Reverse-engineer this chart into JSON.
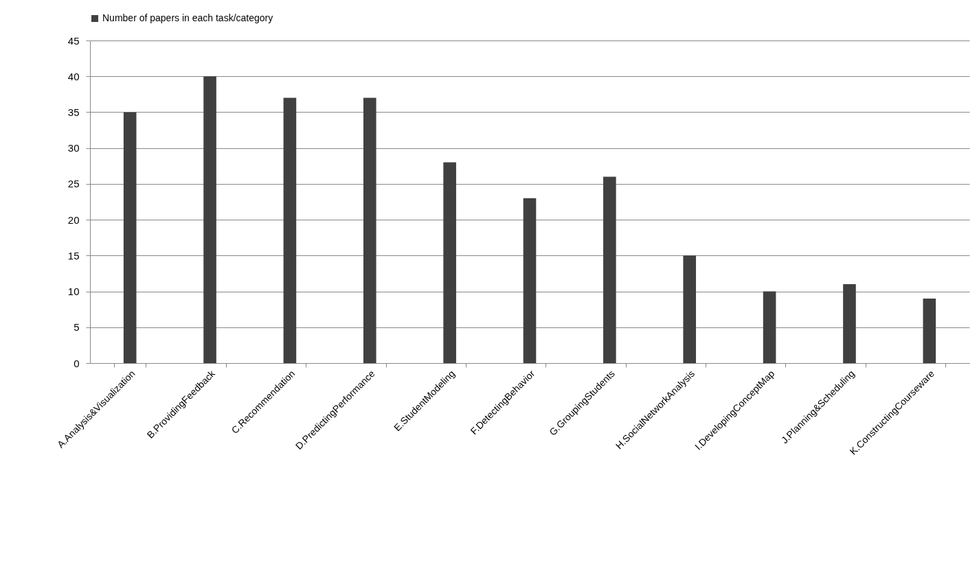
{
  "chart_data": {
    "type": "bar",
    "categories": [
      "A.Analysis&Visualization",
      "B.ProvidingFeedback",
      "C.Recommendation",
      "D.PredictingPerformance",
      "E.StudentModeling",
      "F.DetectingBehavior",
      "G.GroupingStudents",
      "H.SocialNetworkAnalysis",
      "I.DevelopingConceptMap",
      "J.Planning&Scheduling",
      "K.ConstructingCourseware"
    ],
    "series": [
      {
        "name": "Number of papers in each task/category",
        "color": "#404040",
        "values": [
          35,
          40,
          37,
          37,
          28,
          23,
          26,
          15,
          10,
          11,
          9
        ]
      }
    ],
    "ylim": [
      0,
      45
    ],
    "yticks": [
      0,
      5,
      10,
      15,
      20,
      25,
      30,
      35,
      40,
      45
    ],
    "grid": "y",
    "legend": "top"
  }
}
